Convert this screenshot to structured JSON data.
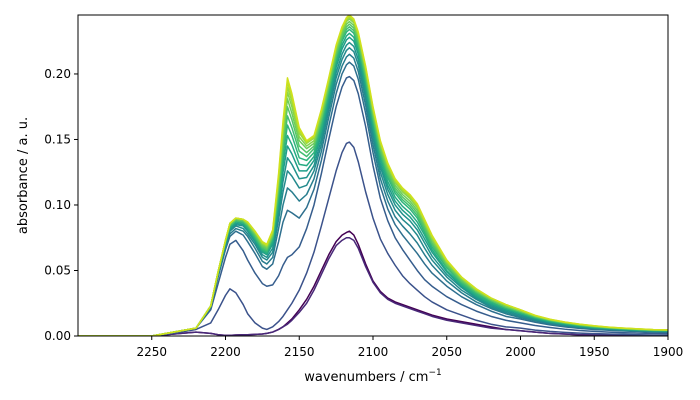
{
  "chart_data": {
    "type": "line",
    "title": "",
    "xlabel": "wavenumbers / cm",
    "xlabel_superscript": "−1",
    "ylabel": "absorbance / a. u.",
    "x_axis_reversed": true,
    "xlim": [
      2300,
      1900
    ],
    "ylim": [
      0,
      0.245
    ],
    "grid": false,
    "legend": "none",
    "x_ticks": [
      2250,
      2200,
      2150,
      2100,
      2050,
      2000,
      1950,
      1900
    ],
    "y_ticks": [
      0.0,
      0.05,
      0.1,
      0.15,
      0.2
    ],
    "y_tick_labels": [
      "0.00",
      "0.05",
      "0.10",
      "0.15",
      "0.20"
    ],
    "x": [
      2300,
      2250,
      2230,
      2220,
      2210,
      2205,
      2200,
      2197,
      2193,
      2188,
      2185,
      2180,
      2175,
      2172,
      2168,
      2164,
      2161,
      2158,
      2155,
      2150,
      2145,
      2140,
      2135,
      2130,
      2125,
      2121,
      2118,
      2116,
      2113,
      2110,
      2105,
      2100,
      2095,
      2090,
      2085,
      2080,
      2075,
      2070,
      2065,
      2060,
      2050,
      2040,
      2030,
      2020,
      2010,
      2000,
      1990,
      1980,
      1970,
      1960,
      1950,
      1940,
      1930,
      1920,
      1910,
      1900
    ],
    "series": [
      {
        "color": "#440154",
        "values": [
          0.0,
          0.0,
          0.002,
          0.003,
          0.002,
          0.001,
          0.0005,
          0.0005,
          0.0008,
          0.001,
          0.001,
          0.0012,
          0.0015,
          0.002,
          0.003,
          0.005,
          0.007,
          0.01,
          0.013,
          0.02,
          0.028,
          0.038,
          0.05,
          0.062,
          0.072,
          0.077,
          0.079,
          0.08,
          0.077,
          0.07,
          0.055,
          0.042,
          0.034,
          0.029,
          0.026,
          0.024,
          0.022,
          0.02,
          0.018,
          0.016,
          0.013,
          0.011,
          0.009,
          0.007,
          0.005,
          0.004,
          0.003,
          0.002,
          0.0015,
          0.001,
          0.0008,
          0.0006,
          0.0004,
          0.0003,
          0.0002,
          0.0001
        ]
      },
      {
        "color": "#482878",
        "values": [
          0.0,
          0.0,
          0.002,
          0.003,
          0.002,
          0.001,
          0.0005,
          0.0005,
          0.0008,
          0.001,
          0.001,
          0.0012,
          0.0015,
          0.002,
          0.003,
          0.005,
          0.007,
          0.009,
          0.012,
          0.018,
          0.025,
          0.035,
          0.047,
          0.059,
          0.069,
          0.073,
          0.075,
          0.075,
          0.073,
          0.067,
          0.053,
          0.041,
          0.033,
          0.028,
          0.025,
          0.023,
          0.021,
          0.019,
          0.017,
          0.015,
          0.012,
          0.01,
          0.008,
          0.006,
          0.005,
          0.004,
          0.003,
          0.002,
          0.0015,
          0.001,
          0.0008,
          0.0006,
          0.0004,
          0.0003,
          0.0002,
          0.0001
        ]
      },
      {
        "color": "#3b528b",
        "values": [
          0.0,
          0.0,
          0.003,
          0.005,
          0.01,
          0.02,
          0.031,
          0.036,
          0.033,
          0.024,
          0.017,
          0.01,
          0.006,
          0.005,
          0.007,
          0.011,
          0.015,
          0.02,
          0.025,
          0.035,
          0.048,
          0.064,
          0.084,
          0.105,
          0.126,
          0.14,
          0.147,
          0.148,
          0.144,
          0.133,
          0.11,
          0.09,
          0.074,
          0.063,
          0.054,
          0.046,
          0.04,
          0.035,
          0.03,
          0.026,
          0.02,
          0.016,
          0.012,
          0.009,
          0.007,
          0.006,
          0.0045,
          0.0035,
          0.0028,
          0.0022,
          0.0018,
          0.0015,
          0.0012,
          0.001,
          0.0008,
          0.0007
        ]
      },
      {
        "color": "#365d8d",
        "values": [
          0.0,
          0.0,
          0.004,
          0.006,
          0.02,
          0.04,
          0.06,
          0.07,
          0.073,
          0.065,
          0.058,
          0.048,
          0.04,
          0.038,
          0.039,
          0.046,
          0.054,
          0.06,
          0.062,
          0.068,
          0.082,
          0.1,
          0.124,
          0.15,
          0.175,
          0.19,
          0.197,
          0.198,
          0.195,
          0.185,
          0.16,
          0.13,
          0.105,
          0.088,
          0.075,
          0.066,
          0.058,
          0.05,
          0.043,
          0.038,
          0.03,
          0.024,
          0.019,
          0.015,
          0.012,
          0.01,
          0.008,
          0.0065,
          0.0052,
          0.0042,
          0.0035,
          0.003,
          0.0025,
          0.0022,
          0.002,
          0.0018
        ]
      },
      {
        "color": "#2e6f8e",
        "values": [
          0.0,
          0.0,
          0.004,
          0.006,
          0.022,
          0.045,
          0.066,
          0.076,
          0.08,
          0.077,
          0.072,
          0.063,
          0.053,
          0.051,
          0.055,
          0.072,
          0.087,
          0.096,
          0.094,
          0.09,
          0.098,
          0.112,
          0.134,
          0.16,
          0.185,
          0.2,
          0.207,
          0.209,
          0.206,
          0.196,
          0.17,
          0.14,
          0.114,
          0.097,
          0.085,
          0.077,
          0.07,
          0.063,
          0.055,
          0.048,
          0.038,
          0.03,
          0.024,
          0.019,
          0.015,
          0.013,
          0.0105,
          0.0085,
          0.007,
          0.0058,
          0.005,
          0.0044,
          0.0038,
          0.0034,
          0.003,
          0.0028
        ]
      },
      {
        "color": "#287d8e",
        "values": [
          0.0,
          0.0,
          0.004,
          0.006,
          0.022,
          0.046,
          0.068,
          0.078,
          0.082,
          0.08,
          0.076,
          0.067,
          0.057,
          0.055,
          0.06,
          0.082,
          0.1,
          0.113,
          0.11,
          0.103,
          0.108,
          0.12,
          0.141,
          0.167,
          0.192,
          0.206,
          0.213,
          0.215,
          0.212,
          0.202,
          0.176,
          0.146,
          0.12,
          0.103,
          0.091,
          0.084,
          0.078,
          0.071,
          0.062,
          0.054,
          0.042,
          0.033,
          0.026,
          0.021,
          0.017,
          0.014,
          0.0115,
          0.0093,
          0.0077,
          0.0064,
          0.0055,
          0.0049,
          0.0043,
          0.0038,
          0.0034,
          0.0032
        ]
      },
      {
        "color": "#238a8d",
        "values": [
          0.0,
          0.0,
          0.004,
          0.006,
          0.022,
          0.047,
          0.069,
          0.08,
          0.084,
          0.082,
          0.078,
          0.07,
          0.06,
          0.058,
          0.064,
          0.089,
          0.11,
          0.126,
          0.122,
          0.113,
          0.115,
          0.126,
          0.146,
          0.172,
          0.197,
          0.211,
          0.218,
          0.22,
          0.217,
          0.207,
          0.181,
          0.151,
          0.125,
          0.108,
          0.096,
          0.089,
          0.084,
          0.077,
          0.067,
          0.058,
          0.045,
          0.035,
          0.028,
          0.022,
          0.018,
          0.015,
          0.0122,
          0.0099,
          0.0082,
          0.0068,
          0.0059,
          0.0052,
          0.0046,
          0.0041,
          0.0037,
          0.0035
        ]
      },
      {
        "color": "#20928c",
        "values": [
          0.0,
          0.0,
          0.004,
          0.006,
          0.023,
          0.048,
          0.07,
          0.081,
          0.085,
          0.084,
          0.08,
          0.072,
          0.062,
          0.06,
          0.067,
          0.094,
          0.118,
          0.136,
          0.131,
          0.12,
          0.121,
          0.13,
          0.15,
          0.176,
          0.201,
          0.215,
          0.222,
          0.224,
          0.221,
          0.211,
          0.185,
          0.155,
          0.129,
          0.112,
          0.1,
          0.093,
          0.088,
          0.081,
          0.071,
          0.061,
          0.047,
          0.037,
          0.029,
          0.023,
          0.019,
          0.016,
          0.0128,
          0.0104,
          0.0086,
          0.0072,
          0.0062,
          0.0055,
          0.0048,
          0.0043,
          0.0039,
          0.0037
        ]
      },
      {
        "color": "#1f9e89",
        "values": [
          0.0,
          0.0,
          0.004,
          0.006,
          0.023,
          0.048,
          0.071,
          0.082,
          0.086,
          0.085,
          0.081,
          0.073,
          0.064,
          0.062,
          0.07,
          0.099,
          0.125,
          0.145,
          0.139,
          0.126,
          0.126,
          0.134,
          0.154,
          0.18,
          0.205,
          0.219,
          0.226,
          0.228,
          0.225,
          0.215,
          0.189,
          0.158,
          0.132,
          0.115,
          0.103,
          0.096,
          0.091,
          0.084,
          0.074,
          0.064,
          0.049,
          0.038,
          0.03,
          0.024,
          0.02,
          0.017,
          0.0133,
          0.0108,
          0.009,
          0.0075,
          0.0064,
          0.0057,
          0.005,
          0.0045,
          0.0041,
          0.0039
        ]
      },
      {
        "color": "#25ab82",
        "values": [
          0.0,
          0.0,
          0.004,
          0.006,
          0.023,
          0.049,
          0.071,
          0.083,
          0.087,
          0.086,
          0.082,
          0.074,
          0.065,
          0.063,
          0.072,
          0.103,
          0.131,
          0.153,
          0.146,
          0.131,
          0.13,
          0.137,
          0.157,
          0.183,
          0.208,
          0.222,
          0.229,
          0.231,
          0.228,
          0.218,
          0.192,
          0.161,
          0.135,
          0.118,
          0.106,
          0.099,
          0.094,
          0.087,
          0.077,
          0.066,
          0.05,
          0.039,
          0.031,
          0.025,
          0.021,
          0.017,
          0.0137,
          0.0111,
          0.0093,
          0.0078,
          0.0066,
          0.0059,
          0.0052,
          0.0047,
          0.0042,
          0.004
        ]
      },
      {
        "color": "#2fb47c",
        "values": [
          0.0,
          0.0,
          0.004,
          0.006,
          0.023,
          0.049,
          0.072,
          0.084,
          0.088,
          0.087,
          0.083,
          0.075,
          0.066,
          0.064,
          0.074,
          0.107,
          0.137,
          0.161,
          0.153,
          0.136,
          0.134,
          0.14,
          0.16,
          0.186,
          0.211,
          0.225,
          0.232,
          0.234,
          0.231,
          0.221,
          0.195,
          0.164,
          0.138,
          0.121,
          0.109,
          0.102,
          0.097,
          0.09,
          0.079,
          0.068,
          0.052,
          0.04,
          0.032,
          0.026,
          0.021,
          0.018,
          0.0141,
          0.0115,
          0.0096,
          0.008,
          0.0068,
          0.006,
          0.0053,
          0.0048,
          0.0043,
          0.0041
        ]
      },
      {
        "color": "#42be71",
        "values": [
          0.0,
          0.0,
          0.004,
          0.006,
          0.023,
          0.049,
          0.072,
          0.084,
          0.088,
          0.087,
          0.084,
          0.076,
          0.067,
          0.065,
          0.075,
          0.11,
          0.142,
          0.168,
          0.159,
          0.141,
          0.137,
          0.143,
          0.163,
          0.188,
          0.213,
          0.227,
          0.234,
          0.236,
          0.233,
          0.223,
          0.197,
          0.166,
          0.14,
          0.123,
          0.111,
          0.104,
          0.099,
          0.092,
          0.081,
          0.07,
          0.053,
          0.041,
          0.033,
          0.027,
          0.022,
          0.018,
          0.0144,
          0.0117,
          0.0098,
          0.0082,
          0.007,
          0.0062,
          0.0055,
          0.0049,
          0.0044,
          0.0042
        ]
      },
      {
        "color": "#56c667",
        "values": [
          0.0,
          0.0,
          0.004,
          0.006,
          0.023,
          0.049,
          0.072,
          0.085,
          0.089,
          0.088,
          0.085,
          0.077,
          0.068,
          0.066,
          0.076,
          0.113,
          0.147,
          0.175,
          0.165,
          0.145,
          0.14,
          0.145,
          0.165,
          0.19,
          0.215,
          0.229,
          0.236,
          0.238,
          0.235,
          0.225,
          0.199,
          0.168,
          0.142,
          0.125,
          0.113,
          0.106,
          0.101,
          0.094,
          0.083,
          0.071,
          0.054,
          0.042,
          0.034,
          0.027,
          0.022,
          0.019,
          0.0147,
          0.012,
          0.01,
          0.0084,
          0.0072,
          0.0063,
          0.0056,
          0.005,
          0.0045,
          0.0043
        ]
      },
      {
        "color": "#6ccd5a",
        "values": [
          0.0,
          0.0,
          0.004,
          0.006,
          0.023,
          0.049,
          0.073,
          0.085,
          0.089,
          0.088,
          0.085,
          0.078,
          0.069,
          0.067,
          0.077,
          0.116,
          0.151,
          0.181,
          0.17,
          0.149,
          0.143,
          0.147,
          0.167,
          0.192,
          0.217,
          0.231,
          0.238,
          0.24,
          0.237,
          0.227,
          0.201,
          0.17,
          0.144,
          0.127,
          0.115,
          0.108,
          0.103,
          0.096,
          0.085,
          0.073,
          0.055,
          0.043,
          0.034,
          0.028,
          0.023,
          0.019,
          0.015,
          0.0122,
          0.0102,
          0.0086,
          0.0073,
          0.0064,
          0.0057,
          0.0051,
          0.0046,
          0.0044
        ]
      },
      {
        "color": "#83d44c",
        "values": [
          0.0,
          0.0,
          0.004,
          0.006,
          0.023,
          0.049,
          0.073,
          0.086,
          0.09,
          0.089,
          0.086,
          0.079,
          0.07,
          0.068,
          0.078,
          0.118,
          0.155,
          0.186,
          0.175,
          0.152,
          0.145,
          0.149,
          0.169,
          0.194,
          0.219,
          0.233,
          0.24,
          0.242,
          0.239,
          0.229,
          0.203,
          0.172,
          0.146,
          0.129,
          0.117,
          0.11,
          0.105,
          0.098,
          0.086,
          0.074,
          0.056,
          0.044,
          0.035,
          0.028,
          0.023,
          0.019,
          0.0152,
          0.0124,
          0.0104,
          0.0088,
          0.0075,
          0.0065,
          0.0058,
          0.0052,
          0.0047,
          0.0045
        ]
      },
      {
        "color": "#9bd93c",
        "values": [
          0.0,
          0.0,
          0.004,
          0.006,
          0.023,
          0.049,
          0.073,
          0.086,
          0.09,
          0.089,
          0.086,
          0.079,
          0.071,
          0.069,
          0.079,
          0.12,
          0.158,
          0.19,
          0.179,
          0.155,
          0.147,
          0.151,
          0.171,
          0.195,
          0.22,
          0.234,
          0.241,
          0.243,
          0.24,
          0.23,
          0.204,
          0.173,
          0.147,
          0.13,
          0.118,
          0.111,
          0.106,
          0.099,
          0.087,
          0.075,
          0.057,
          0.044,
          0.035,
          0.029,
          0.024,
          0.02,
          0.0154,
          0.0125,
          0.0105,
          0.0089,
          0.0076,
          0.0066,
          0.0059,
          0.0053,
          0.0048,
          0.0046
        ]
      },
      {
        "color": "#b5de2b",
        "values": [
          0.0,
          0.0,
          0.004,
          0.006,
          0.023,
          0.049,
          0.073,
          0.086,
          0.09,
          0.089,
          0.087,
          0.08,
          0.071,
          0.069,
          0.08,
          0.122,
          0.161,
          0.194,
          0.182,
          0.157,
          0.148,
          0.152,
          0.172,
          0.196,
          0.221,
          0.235,
          0.242,
          0.244,
          0.241,
          0.231,
          0.205,
          0.174,
          0.148,
          0.131,
          0.119,
          0.112,
          0.107,
          0.1,
          0.088,
          0.076,
          0.057,
          0.045,
          0.036,
          0.029,
          0.024,
          0.02,
          0.0156,
          0.0127,
          0.0106,
          0.009,
          0.0077,
          0.0067,
          0.006,
          0.0054,
          0.0049,
          0.0047
        ]
      },
      {
        "color": "#d0e11c",
        "values": [
          0.0,
          0.0,
          0.004,
          0.006,
          0.023,
          0.049,
          0.073,
          0.086,
          0.09,
          0.089,
          0.087,
          0.08,
          0.072,
          0.07,
          0.081,
          0.124,
          0.164,
          0.197,
          0.185,
          0.159,
          0.149,
          0.153,
          0.173,
          0.197,
          0.222,
          0.236,
          0.243,
          0.245,
          0.242,
          0.232,
          0.206,
          0.175,
          0.149,
          0.132,
          0.12,
          0.113,
          0.108,
          0.101,
          0.089,
          0.077,
          0.058,
          0.045,
          0.036,
          0.029,
          0.024,
          0.02,
          0.0158,
          0.0128,
          0.0107,
          0.0091,
          0.0078,
          0.0068,
          0.006,
          0.0054,
          0.0049,
          0.0047
        ]
      }
    ]
  }
}
